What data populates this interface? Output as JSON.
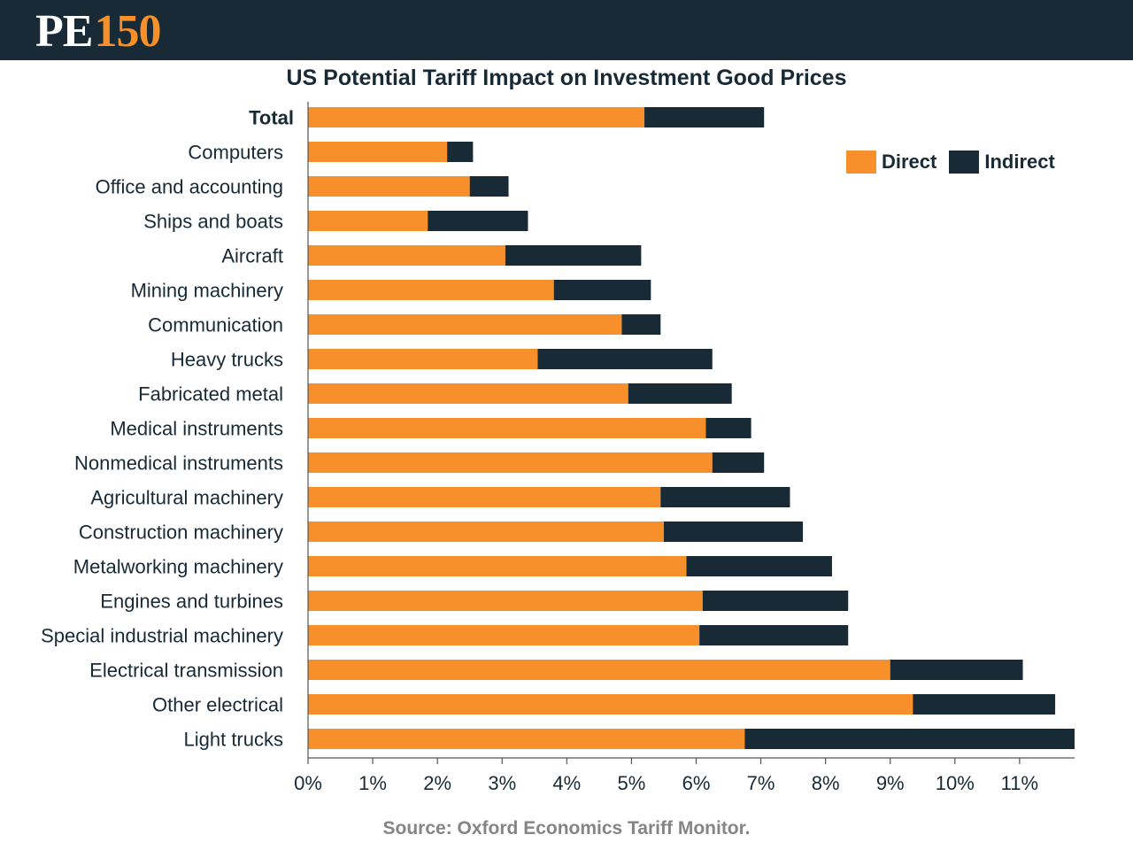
{
  "brand": {
    "prefix": "PE",
    "number": "150"
  },
  "source": "Source: Oxford Economics Tariff Monitor.",
  "colors": {
    "direct": "#f7902a",
    "indirect": "#172a36",
    "header_bg": "#172a36",
    "text": "#172a36",
    "axis": "#555555"
  },
  "chart_data": {
    "type": "bar",
    "orientation": "horizontal",
    "stacked": true,
    "title": "US Potential Tariff Impact on Investment Good Prices",
    "xlabel": "",
    "ylabel": "",
    "xlim": [
      0,
      11.85
    ],
    "x_ticks": [
      "0%",
      "1%",
      "2%",
      "3%",
      "4%",
      "5%",
      "6%",
      "7%",
      "8%",
      "9%",
      "10%",
      "11%"
    ],
    "legend_position": "top-right",
    "categories": [
      "Total",
      "Computers",
      "Office and accounting",
      "Ships and boats",
      "Aircraft",
      "Mining machinery",
      "Communication",
      "Heavy trucks",
      "Fabricated metal",
      "Medical instruments",
      "Nonmedical instruments",
      "Agricultural machinery",
      "Construction machinery",
      "Metalworking machinery",
      "Engines and turbines",
      "Special industrial machinery",
      "Electrical transmission",
      "Other electrical",
      "Light trucks"
    ],
    "series": [
      {
        "name": "Direct",
        "values": [
          5.2,
          2.15,
          2.5,
          1.85,
          3.05,
          3.8,
          4.85,
          3.55,
          4.95,
          6.15,
          6.25,
          5.45,
          5.5,
          5.85,
          6.1,
          6.05,
          9.0,
          9.35,
          6.75
        ]
      },
      {
        "name": "Indirect",
        "values": [
          1.85,
          0.4,
          0.6,
          1.55,
          2.1,
          1.5,
          0.6,
          2.7,
          1.6,
          0.7,
          0.8,
          2.0,
          2.15,
          2.25,
          2.25,
          2.3,
          2.05,
          2.2,
          5.1
        ]
      }
    ]
  }
}
